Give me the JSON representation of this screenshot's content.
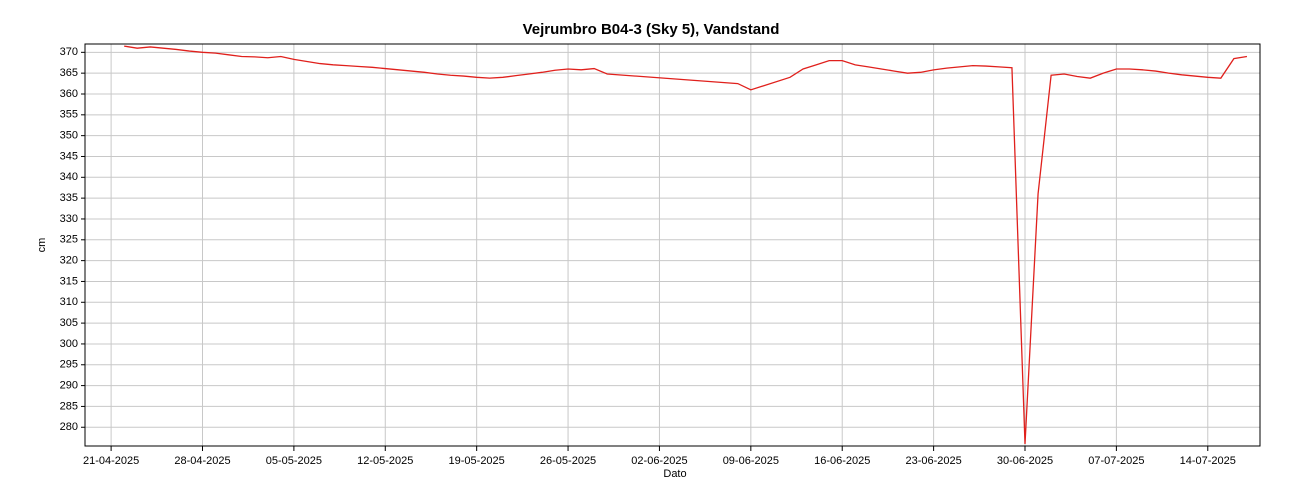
{
  "chart_data": {
    "type": "line",
    "title": "Vejrumbro B04-3 (Sky 5), Vandstand",
    "y_label": "cm",
    "x_label": "Dato",
    "grid": true,
    "xlim": [
      "2025-04-19",
      "2025-07-18"
    ],
    "xticks": [
      {
        "value": "2025-04-21",
        "label": "21-04-2025"
      },
      {
        "value": "2025-04-28",
        "label": "28-04-2025"
      },
      {
        "value": "2025-05-05",
        "label": "05-05-2025"
      },
      {
        "value": "2025-05-12",
        "label": "12-05-2025"
      },
      {
        "value": "2025-05-19",
        "label": "19-05-2025"
      },
      {
        "value": "2025-05-26",
        "label": "26-05-2025"
      },
      {
        "value": "2025-06-02",
        "label": "02-06-2025"
      },
      {
        "value": "2025-06-09",
        "label": "09-06-2025"
      },
      {
        "value": "2025-06-16",
        "label": "16-06-2025"
      },
      {
        "value": "2025-06-23",
        "label": "23-06-2025"
      },
      {
        "value": "2025-06-30",
        "label": "30-06-2025"
      },
      {
        "value": "2025-07-07",
        "label": "07-07-2025"
      },
      {
        "value": "2025-07-14",
        "label": "14-07-2025"
      }
    ],
    "ylim": [
      275.5,
      372
    ],
    "yticks": [
      280,
      285,
      290,
      295,
      300,
      305,
      310,
      315,
      320,
      325,
      330,
      335,
      340,
      345,
      350,
      355,
      360,
      365,
      370
    ],
    "x": [
      "2025-04-22",
      "2025-04-23",
      "2025-04-24",
      "2025-04-25",
      "2025-04-26",
      "2025-04-27",
      "2025-04-28",
      "2025-04-29",
      "2025-04-30",
      "2025-05-01",
      "2025-05-02",
      "2025-05-03",
      "2025-05-04",
      "2025-05-05",
      "2025-05-06",
      "2025-05-07",
      "2025-05-08",
      "2025-05-09",
      "2025-05-10",
      "2025-05-11",
      "2025-05-12",
      "2025-05-13",
      "2025-05-14",
      "2025-05-15",
      "2025-05-16",
      "2025-05-17",
      "2025-05-18",
      "2025-05-19",
      "2025-05-20",
      "2025-05-21",
      "2025-05-22",
      "2025-05-23",
      "2025-05-24",
      "2025-05-25",
      "2025-05-26",
      "2025-05-27",
      "2025-05-28",
      "2025-05-29",
      "2025-06-08",
      "2025-06-09",
      "2025-06-12",
      "2025-06-13",
      "2025-06-14",
      "2025-06-15",
      "2025-06-16",
      "2025-06-17",
      "2025-06-18",
      "2025-06-19",
      "2025-06-20",
      "2025-06-21",
      "2025-06-22",
      "2025-06-23",
      "2025-06-24",
      "2025-06-25",
      "2025-06-26",
      "2025-06-27",
      "2025-06-28",
      "2025-06-29",
      "2025-06-30",
      "2025-07-01",
      "2025-07-02",
      "2025-07-03",
      "2025-07-04",
      "2025-07-05",
      "2025-07-06",
      "2025-07-07",
      "2025-07-08",
      "2025-07-09",
      "2025-07-10",
      "2025-07-11",
      "2025-07-12",
      "2025-07-13",
      "2025-07-14",
      "2025-07-15",
      "2025-07-16",
      "2025-07-17"
    ],
    "series": [
      {
        "name": "Vandstand",
        "color": "#e0201c",
        "values": [
          371.5,
          371,
          371.3,
          371,
          370.7,
          370.3,
          370,
          369.8,
          369.4,
          369,
          368.9,
          368.7,
          369,
          368.3,
          367.8,
          367.3,
          367,
          366.8,
          366.6,
          366.4,
          366.1,
          365.8,
          365.5,
          365.2,
          364.8,
          364.5,
          364.3,
          364,
          363.8,
          364,
          364.4,
          364.8,
          365.2,
          365.7,
          366,
          365.8,
          366.1,
          364.8,
          362.5,
          361,
          364,
          366,
          367,
          368,
          368,
          367,
          366.5,
          366,
          365.5,
          365,
          365.2,
          365.8,
          366.2,
          366.5,
          366.8,
          366.7,
          366.5,
          366.3,
          276,
          336,
          364.5,
          364.8,
          364.2,
          363.8,
          365,
          366,
          366,
          365.8,
          365.5,
          365,
          364.6,
          364.3,
          364,
          363.8,
          368.5,
          369
        ]
      }
    ]
  }
}
